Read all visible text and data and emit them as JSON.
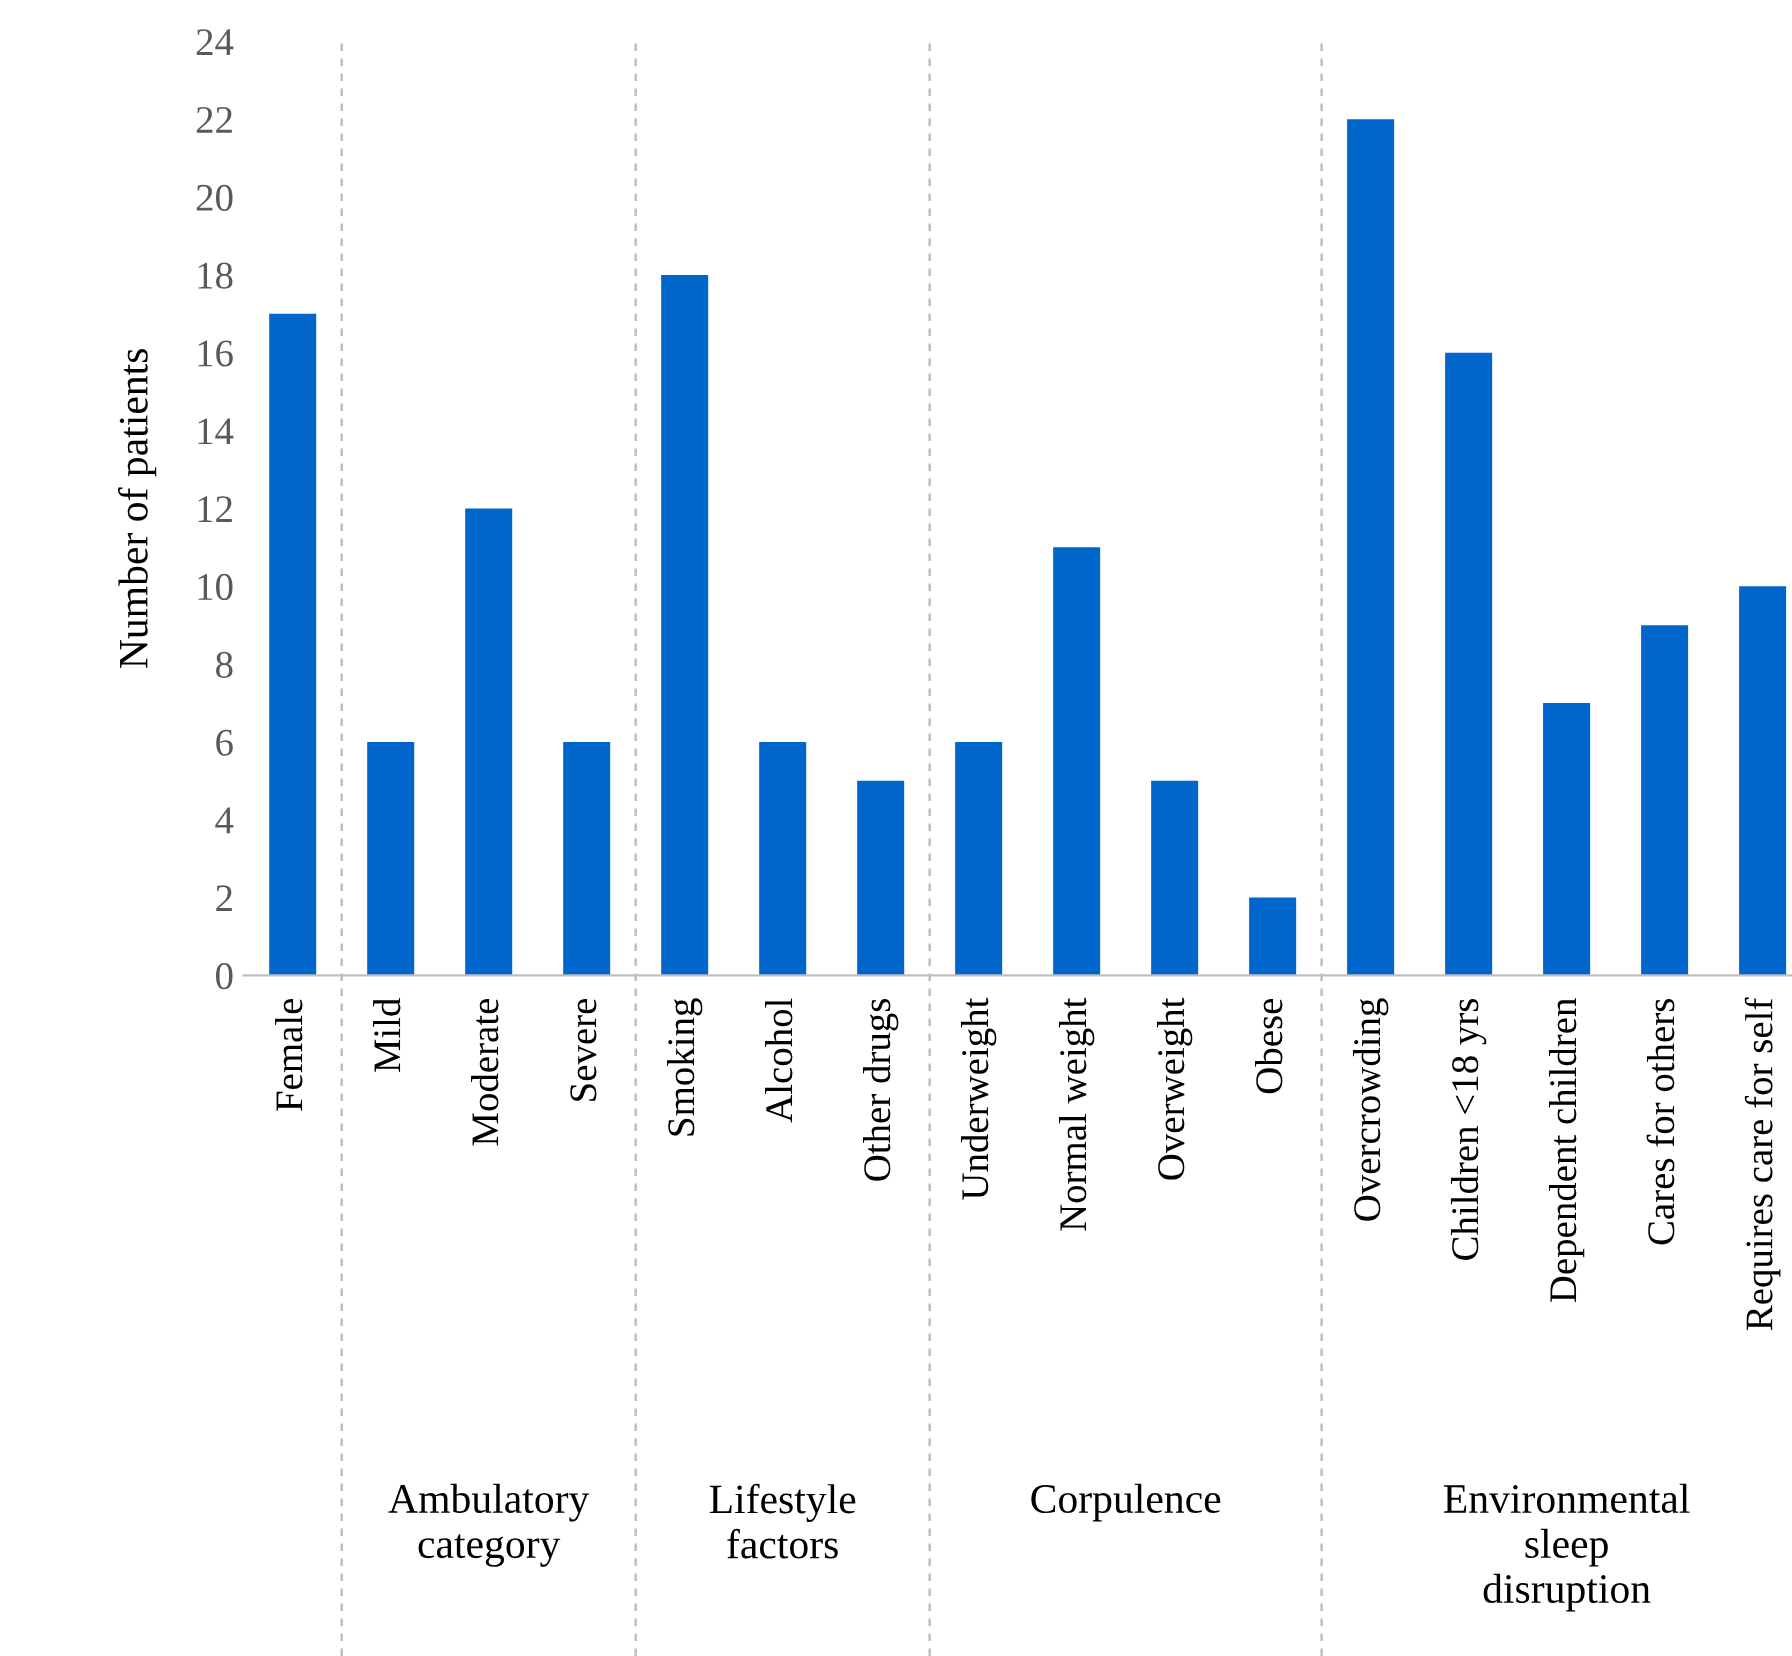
{
  "chart_data": {
    "type": "bar",
    "ylabel": "Number of patients",
    "categories": [
      "Female",
      "Mild",
      "Moderate",
      "Severe",
      "Smoking",
      "Alcohol",
      "Other drugs",
      "Underweight",
      "Normal weight",
      "Overweight",
      "Obese",
      "Overcrowding",
      "Children <18 yrs",
      "Dependent children",
      "Cares for others",
      "Requires care for self"
    ],
    "values": [
      17,
      6,
      12,
      6,
      18,
      6,
      5,
      6,
      11,
      5,
      2,
      22,
      16,
      7,
      9,
      10
    ],
    "color": "#0066cc",
    "ylim": [
      0,
      24
    ],
    "yticks": [
      0,
      2,
      4,
      6,
      8,
      10,
      12,
      14,
      16,
      18,
      20,
      22,
      24
    ],
    "grid": false,
    "annotations": [
      "Ambulatory\ncategory",
      "Lifestyle\nfactors",
      "Corpulence",
      "Environmental\nsleep\ndisruption"
    ]
  }
}
